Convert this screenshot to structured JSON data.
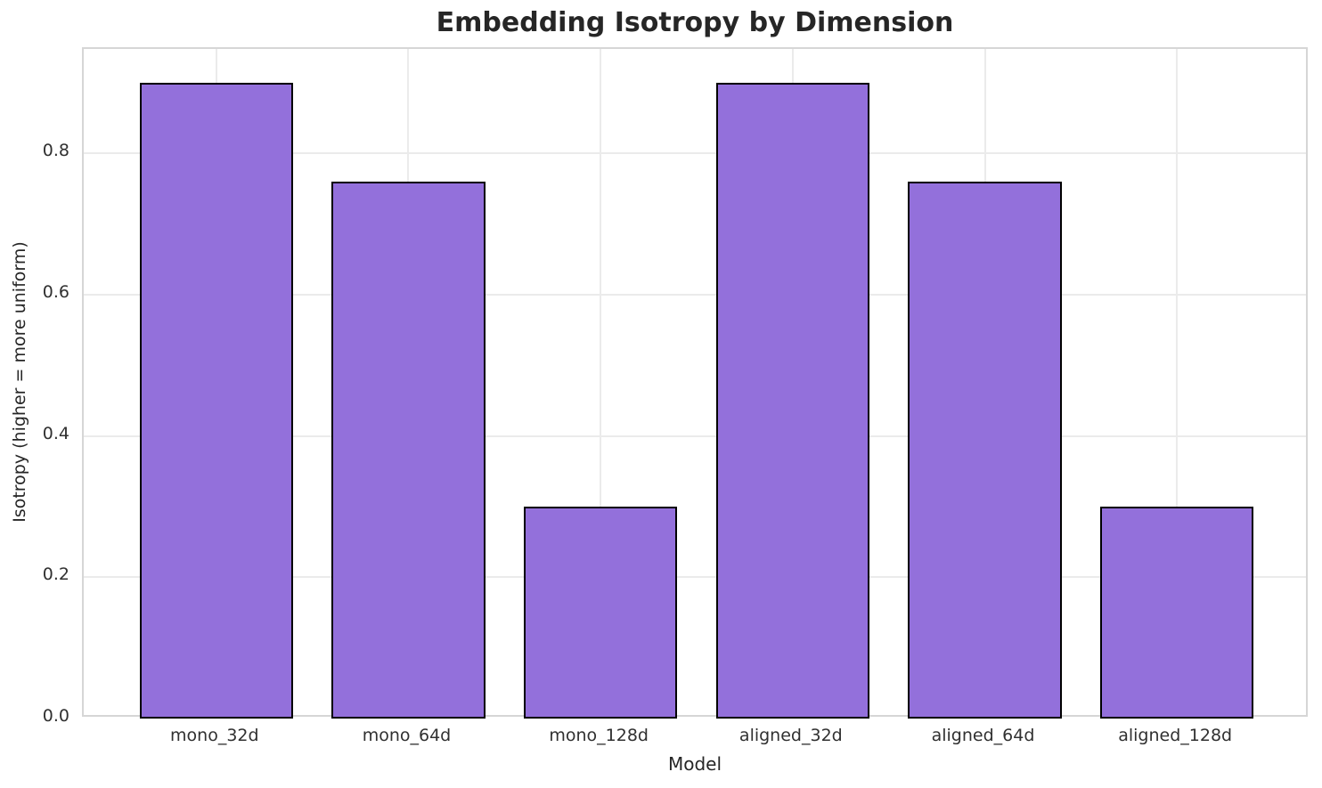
{
  "chart_data": {
    "type": "bar",
    "title": "Embedding Isotropy by Dimension",
    "xlabel": "Model",
    "ylabel": "Isotropy (higher = more uniform)",
    "categories": [
      "mono_32d",
      "mono_64d",
      "mono_128d",
      "aligned_32d",
      "aligned_64d",
      "aligned_128d"
    ],
    "values": [
      0.9,
      0.76,
      0.3,
      0.9,
      0.76,
      0.3
    ],
    "ylim": [
      0,
      0.948
    ],
    "yticks": [
      0.0,
      0.2,
      0.4,
      0.6,
      0.8
    ],
    "grid": true,
    "legend_position": "none",
    "bar_color": "#9370DB",
    "bar_edge_color": "#000000",
    "grid_color": "#ebebeb",
    "spine_color": "#d6d6d6",
    "background_color": "#ffffff"
  }
}
